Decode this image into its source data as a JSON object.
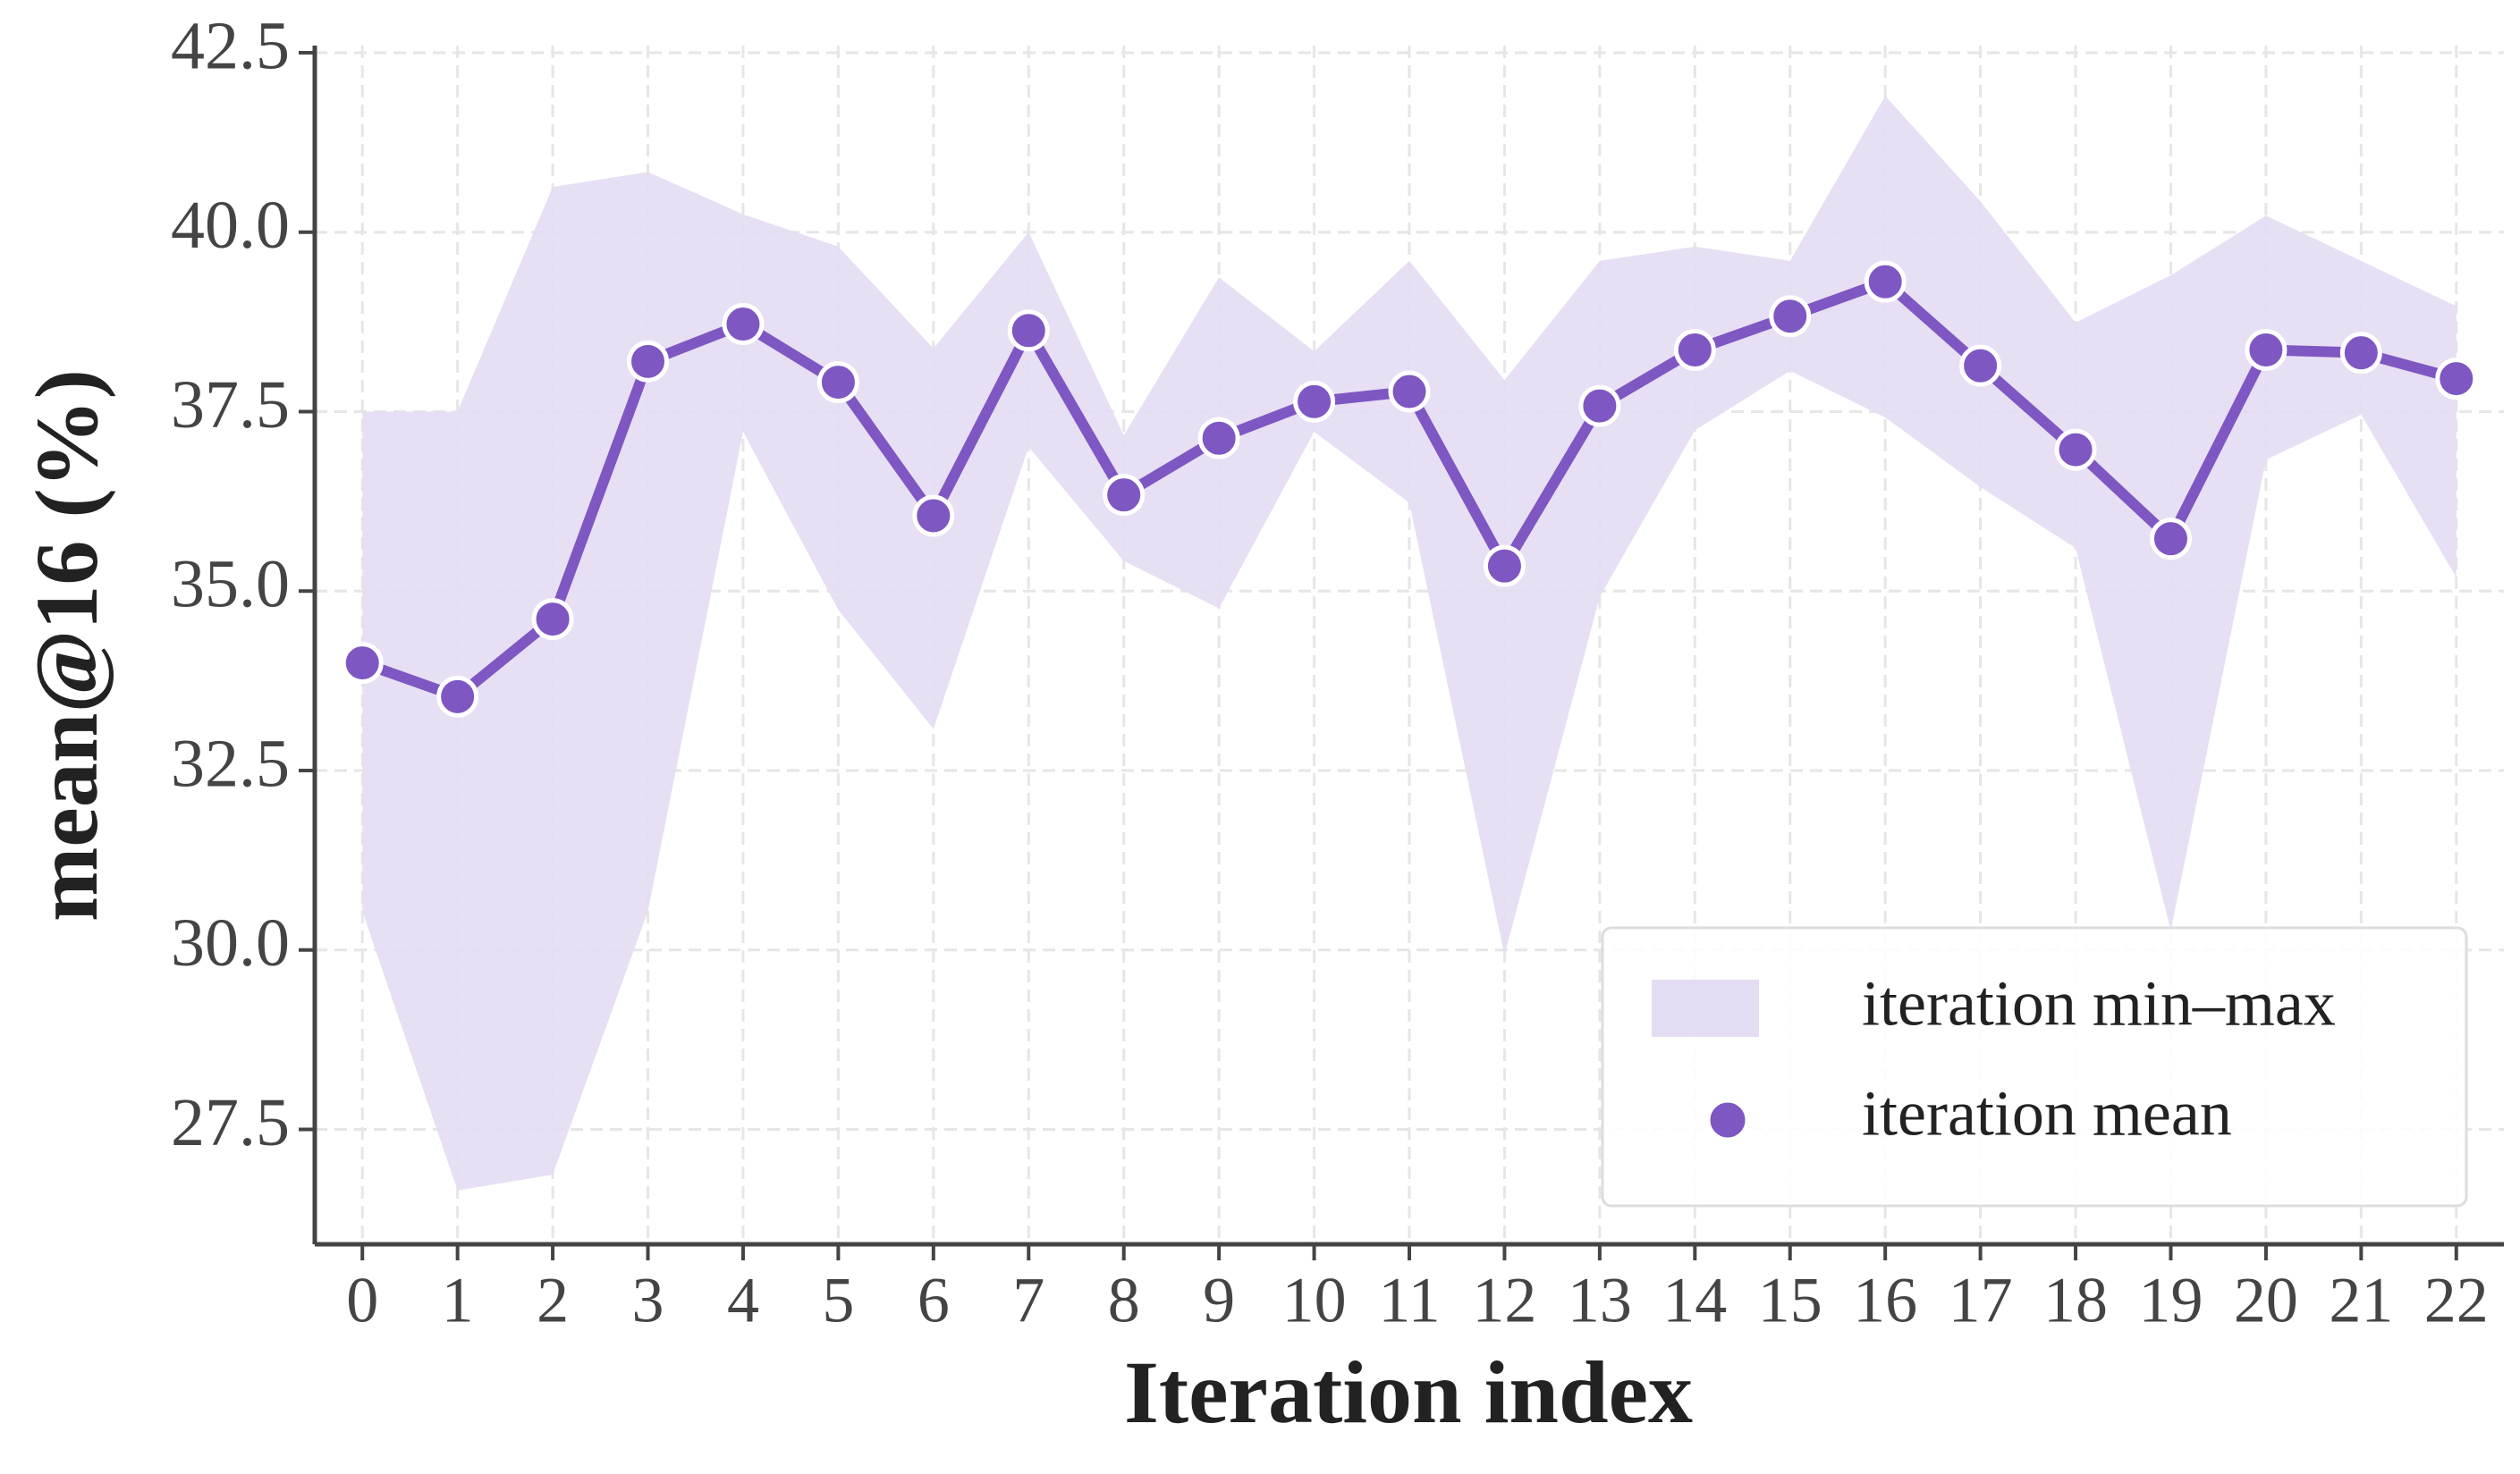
{
  "chart_data": {
    "type": "line",
    "x_label": "Iteration index",
    "y_label": "mean@16 (%)",
    "x": [
      0,
      1,
      2,
      3,
      4,
      5,
      6,
      7,
      8,
      9,
      10,
      11,
      12,
      13,
      14,
      15,
      16,
      17,
      18,
      19,
      20,
      21,
      22
    ],
    "series": [
      {
        "name": "iteration min–max",
        "color": "#e4dcf2",
        "min": [
          30.54,
          26.65,
          26.87,
          30.54,
          37.22,
          34.74,
          33.08,
          37.01,
          35.42,
          34.76,
          37.22,
          36.23,
          29.93,
          34.92,
          37.24,
          38.07,
          37.42,
          36.45,
          35.6,
          30.27,
          36.83,
          37.46,
          35.19
        ],
        "max": [
          37.5,
          37.5,
          40.63,
          40.84,
          40.25,
          39.8,
          38.38,
          40.0,
          37.17,
          39.37,
          38.34,
          39.6,
          37.94,
          39.6,
          39.8,
          39.6,
          41.9,
          40.43,
          38.74,
          39.4,
          40.23,
          39.6,
          38.97
        ]
      },
      {
        "name": "iteration mean",
        "color": "#7e57c2",
        "values": [
          34.0,
          33.53,
          34.61,
          38.2,
          38.72,
          37.91,
          36.05,
          38.63,
          36.34,
          37.13,
          37.64,
          37.78,
          35.35,
          37.58,
          38.36,
          38.83,
          39.31,
          38.14,
          36.97,
          35.73,
          38.36,
          38.32,
          37.96
        ]
      }
    ],
    "xlim": [
      -0.5,
      22.5
    ],
    "xticks": [
      0,
      1,
      2,
      3,
      4,
      5,
      6,
      7,
      8,
      9,
      10,
      11,
      12,
      13,
      14,
      15,
      16,
      17,
      18,
      19,
      20,
      21,
      22
    ],
    "ylim": [
      25.9,
      42.6
    ],
    "yticks": [
      {
        "value": 27.5,
        "label": "27.5"
      },
      {
        "value": 30,
        "label": "30.0"
      },
      {
        "value": 32.5,
        "label": "32.5"
      },
      {
        "value": 35,
        "label": "35.0"
      },
      {
        "value": 37.5,
        "label": "37.5"
      },
      {
        "value": 40,
        "label": "40.0"
      },
      {
        "value": 42.5,
        "label": "42.5"
      }
    ],
    "grid": true,
    "legend": "lower right"
  }
}
